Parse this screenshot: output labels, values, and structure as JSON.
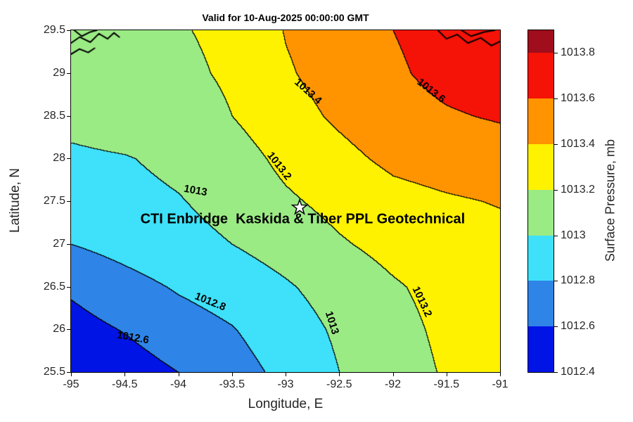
{
  "title": "Valid for 10-Aug-2025 00:00:00 GMT",
  "annotation": {
    "text": "CTI Enbridge  Kaskida & Tiber PPL Geotechnical",
    "lon": -92.84,
    "lat": 27.29
  },
  "star_marker": {
    "lon": -92.87,
    "lat": 27.43
  },
  "axes": {
    "xlabel": "Longitude, E",
    "ylabel": "Latitude, N",
    "xlim": [
      -95,
      -91
    ],
    "ylim": [
      25.5,
      29.5
    ],
    "x_ticks": [
      -95,
      -94.5,
      -94,
      -93.5,
      -93,
      -92.5,
      -92,
      -91.5,
      -91
    ],
    "y_ticks": [
      25.5,
      26,
      26.5,
      27,
      27.5,
      28,
      28.5,
      29,
      29.5
    ],
    "grid": false
  },
  "colorbar": {
    "label": "Surface Pressure, mb",
    "ticks": [
      1012.4,
      1012.6,
      1012.8,
      1013,
      1013.2,
      1013.4,
      1013.6,
      1013.8
    ],
    "range": [
      1012.4,
      1013.9
    ],
    "base_level": 1012.4,
    "level_step": 0.2,
    "band_colors": [
      "#0014e6",
      "#2f84e8",
      "#3ee1f9",
      "#9beb85",
      "#fef200",
      "#ff9400",
      "#f51207",
      "#a00d1c"
    ]
  },
  "chart_data": {
    "type": "heatmap",
    "subtype": "filled_contour_map",
    "title": "Valid for 10-Aug-2025 00:00:00 GMT",
    "xlabel": "Longitude, E",
    "ylabel": "Latitude, N",
    "legend_position": "right-colorbar",
    "contour_levels": [
      1012.6,
      1012.8,
      1013,
      1013.2,
      1013.4,
      1013.6,
      1013.8
    ],
    "x": [
      -95,
      -94.5,
      -94,
      -93.5,
      -93,
      -92.5,
      -92,
      -91.5,
      -91
    ],
    "y": [
      25.5,
      26,
      26.5,
      27,
      27.5,
      28,
      28.5,
      29,
      29.5
    ],
    "row_order": "rows follow y ascending (row 0 = lat 25.5)",
    "values": [
      [
        1012.45,
        1012.51,
        1012.6,
        1012.72,
        1012.85,
        1013.0,
        1013.11,
        1013.22,
        1013.28
      ],
      [
        1012.53,
        1012.61,
        1012.71,
        1012.79,
        1012.91,
        1013.03,
        1013.14,
        1013.24,
        1013.3
      ],
      [
        1012.63,
        1012.73,
        1012.82,
        1012.89,
        1012.98,
        1013.08,
        1013.18,
        1013.26,
        1013.31
      ],
      [
        1012.8,
        1012.87,
        1012.94,
        1013.0,
        1013.08,
        1013.18,
        1013.26,
        1013.31,
        1013.35
      ],
      [
        1012.89,
        1012.95,
        1012.99,
        1013.06,
        1013.17,
        1013.26,
        1013.34,
        1013.38,
        1013.41
      ],
      [
        1012.97,
        1012.99,
        1013.04,
        1013.11,
        1013.25,
        1013.35,
        1013.44,
        1013.48,
        1013.5
      ],
      [
        1013.05,
        1013.09,
        1013.13,
        1013.2,
        1013.33,
        1013.43,
        1013.52,
        1013.58,
        1013.62
      ],
      [
        1013.11,
        1013.14,
        1013.17,
        1013.22,
        1013.38,
        1013.48,
        1013.57,
        1013.66,
        1013.71
      ],
      [
        1013.14,
        1013.16,
        1013.19,
        1013.23,
        1013.41,
        1013.5,
        1013.6,
        1013.68,
        1013.73
      ]
    ],
    "contour_labels": [
      {
        "text": "1013.4",
        "lon": -92.79,
        "lat": 28.78,
        "rot": 42
      },
      {
        "text": "1013.6",
        "lon": -91.64,
        "lat": 28.79,
        "rot": 38
      },
      {
        "text": "1013",
        "lon": -93.84,
        "lat": 27.62,
        "rot": 10
      },
      {
        "text": "1013.2",
        "lon": -93.06,
        "lat": 27.91,
        "rot": 52
      },
      {
        "text": "1012.8",
        "lon": -93.7,
        "lat": 26.32,
        "rot": 22
      },
      {
        "text": "1012.6",
        "lon": -94.42,
        "lat": 25.9,
        "rot": 10
      },
      {
        "text": "1013",
        "lon": -92.57,
        "lat": 26.08,
        "rot": 72
      },
      {
        "text": "1013.2",
        "lon": -91.73,
        "lat": 26.32,
        "rot": 65
      }
    ],
    "coastlines": [
      [
        [
          -95.0,
          29.35
        ],
        [
          -94.92,
          29.42
        ],
        [
          -94.82,
          29.36
        ],
        [
          -94.74,
          29.46
        ],
        [
          -94.66,
          29.4
        ],
        [
          -94.6,
          29.47
        ],
        [
          -94.55,
          29.42
        ]
      ],
      [
        [
          -95.0,
          29.22
        ],
        [
          -94.92,
          29.28
        ],
        [
          -94.84,
          29.24
        ],
        [
          -94.78,
          29.29
        ]
      ],
      [
        [
          -94.97,
          29.5
        ],
        [
          -94.9,
          29.43
        ],
        [
          -94.82,
          29.48
        ],
        [
          -94.76,
          29.5
        ]
      ],
      [
        [
          -91.58,
          29.5
        ],
        [
          -91.5,
          29.4
        ],
        [
          -91.4,
          29.45
        ],
        [
          -91.3,
          29.35
        ],
        [
          -91.18,
          29.41
        ],
        [
          -91.08,
          29.32
        ],
        [
          -91.0,
          29.37
        ]
      ],
      [
        [
          -91.36,
          29.5
        ],
        [
          -91.27,
          29.43
        ],
        [
          -91.15,
          29.48
        ],
        [
          -91.05,
          29.5
        ]
      ]
    ]
  }
}
